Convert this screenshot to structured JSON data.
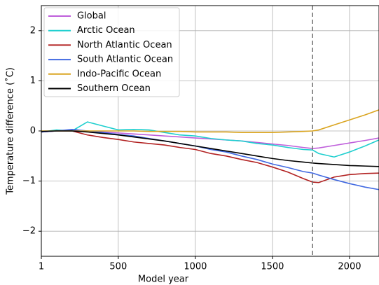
{
  "chart_data": {
    "type": "line",
    "x_label": "Model year",
    "y_label": "Temperature difference (˚C)",
    "x": [
      1,
      100,
      200,
      300,
      400,
      500,
      600,
      700,
      800,
      900,
      1000,
      1100,
      1200,
      1300,
      1400,
      1500,
      1600,
      1700,
      1760,
      1800,
      1900,
      2000,
      2100,
      2191
    ],
    "series": [
      {
        "name": "Global",
        "color": "#bf5fdb",
        "values": [
          -0.02,
          0,
          0.01,
          0,
          -0.02,
          -0.04,
          -0.06,
          -0.08,
          -0.1,
          -0.12,
          -0.14,
          -0.16,
          -0.18,
          -0.2,
          -0.23,
          -0.26,
          -0.29,
          -0.33,
          -0.35,
          -0.34,
          -0.29,
          -0.24,
          -0.19,
          -0.14
        ]
      },
      {
        "name": "Arctic Ocean",
        "color": "#1fcfcf",
        "values": [
          -0.02,
          0.02,
          0,
          0.18,
          0.1,
          0.02,
          0.03,
          0.02,
          -0.03,
          -0.08,
          -0.1,
          -0.15,
          -0.18,
          -0.2,
          -0.25,
          -0.28,
          -0.33,
          -0.37,
          -0.38,
          -0.45,
          -0.52,
          -0.42,
          -0.3,
          -0.18
        ]
      },
      {
        "name": "North Atlantic Ocean",
        "color": "#b22222",
        "values": [
          -0.02,
          0,
          0,
          -0.08,
          -0.13,
          -0.17,
          -0.22,
          -0.25,
          -0.28,
          -0.33,
          -0.37,
          -0.45,
          -0.5,
          -0.57,
          -0.63,
          -0.72,
          -0.82,
          -0.95,
          -1.02,
          -1.03,
          -0.92,
          -0.87,
          -0.85,
          -0.84
        ]
      },
      {
        "name": "South Atlantic Ocean",
        "color": "#4169e1",
        "values": [
          -0.02,
          0,
          0.03,
          0,
          -0.03,
          -0.07,
          -0.1,
          -0.15,
          -0.2,
          -0.25,
          -0.3,
          -0.37,
          -0.42,
          -0.5,
          -0.57,
          -0.66,
          -0.73,
          -0.81,
          -0.84,
          -0.88,
          -0.97,
          -1.05,
          -1.12,
          -1.17
        ]
      },
      {
        "name": "Indo-Pacific Ocean",
        "color": "#daa520",
        "values": [
          0,
          0,
          0,
          0,
          0,
          0,
          0,
          -0.01,
          -0.01,
          -0.01,
          -0.02,
          -0.02,
          -0.02,
          -0.03,
          -0.03,
          -0.03,
          -0.02,
          -0.01,
          0,
          0.02,
          0.12,
          0.22,
          0.32,
          0.42
        ]
      },
      {
        "name": "Southern Ocean",
        "color": "#000000",
        "values": [
          -0.01,
          0,
          0,
          -0.02,
          -0.05,
          -0.08,
          -0.12,
          -0.16,
          -0.2,
          -0.25,
          -0.3,
          -0.35,
          -0.4,
          -0.45,
          -0.5,
          -0.55,
          -0.59,
          -0.62,
          -0.64,
          -0.65,
          -0.67,
          -0.69,
          -0.7,
          -0.71
        ]
      }
    ],
    "xlim": [
      1,
      2191
    ],
    "ylim": [
      -2.5,
      2.5
    ],
    "xticks": [
      1,
      500,
      1000,
      1500,
      2000
    ],
    "yticks": [
      {
        "value": -2,
        "label": "−2"
      },
      {
        "value": -1,
        "label": "−1"
      },
      0,
      1,
      2
    ],
    "grid": true,
    "legend": "upper left",
    "vline": {
      "x": 1760,
      "color": "#777777"
    }
  }
}
